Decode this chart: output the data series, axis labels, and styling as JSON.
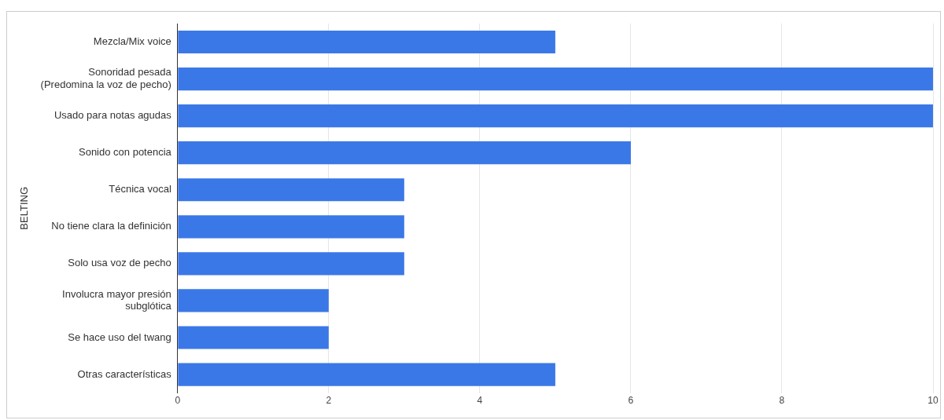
{
  "chart_data": {
    "type": "bar",
    "orientation": "horizontal",
    "ylabel": "BELTING",
    "categories": [
      "Mezcla/Mix voice",
      "Sonoridad pesada\n(Predomina la voz de pecho)",
      "Usado para notas agudas",
      "Sonido con potencia",
      "Técnica vocal",
      "No tiene clara la definición",
      "Solo usa voz de pecho",
      "Involucra mayor presión\nsubglótica",
      "Se hace uso del twang",
      "Otras características"
    ],
    "values": [
      5,
      10,
      10,
      6,
      3,
      3,
      3,
      2,
      2,
      5
    ],
    "color": "#3b78e7",
    "xlim": [
      0,
      10
    ],
    "xticks": [
      0,
      2,
      4,
      6,
      8,
      10
    ],
    "grid": "x",
    "legend": false
  }
}
